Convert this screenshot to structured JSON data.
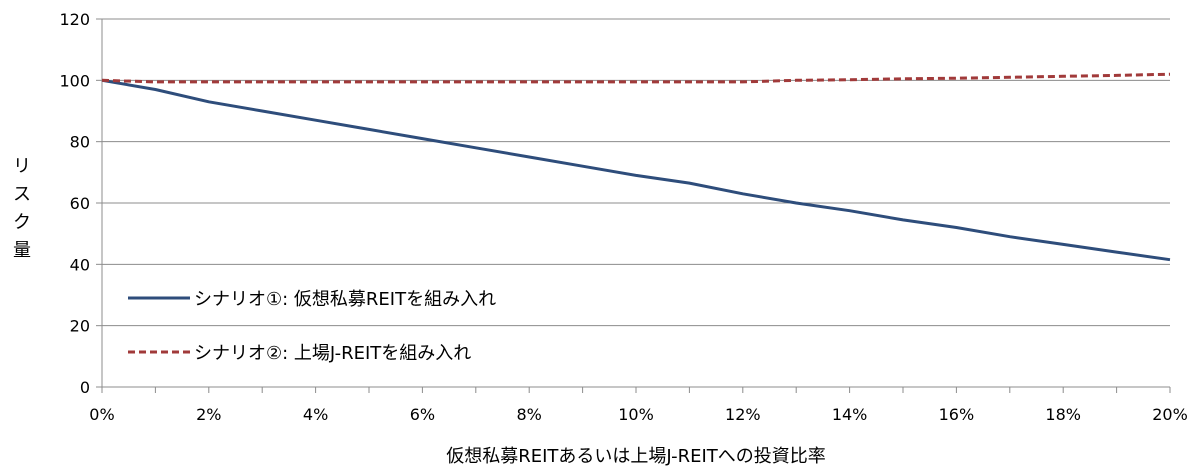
{
  "chart_data": {
    "type": "line",
    "title": "",
    "xlabel": "仮想私募REITあるいは上場J-REITへの投資比率",
    "ylabel": "リスク量",
    "xlim": [
      0,
      20
    ],
    "ylim": [
      0,
      120
    ],
    "x_ticks": [
      0,
      2,
      4,
      6,
      8,
      10,
      12,
      14,
      16,
      18,
      20
    ],
    "x_tick_labels": [
      "0%",
      "2%",
      "4%",
      "6%",
      "8%",
      "10%",
      "12%",
      "14%",
      "16%",
      "18%",
      "20%"
    ],
    "y_ticks": [
      0,
      20,
      40,
      60,
      80,
      100,
      120
    ],
    "y_tick_labels": [
      "0",
      "20",
      "40",
      "60",
      "80",
      "100",
      "120"
    ],
    "grid": "horizontal",
    "legend_position": "lower-left",
    "x": [
      0,
      1,
      2,
      3,
      4,
      5,
      6,
      7,
      8,
      9,
      10,
      11,
      12,
      13,
      14,
      15,
      16,
      17,
      18,
      19,
      20
    ],
    "series": [
      {
        "name": "シナリオ①: 仮想私募REITを組み入れ",
        "color": "#2e4d7b",
        "style": "solid",
        "values": [
          100,
          97,
          93,
          90,
          87,
          84,
          81,
          78,
          75,
          72,
          69,
          66.5,
          63,
          60,
          57.5,
          54.5,
          52,
          49,
          46.5,
          44,
          41.5
        ]
      },
      {
        "name": "シナリオ②: 上場J-REITを組み入れ",
        "color": "#a13a3a",
        "style": "dashed",
        "values": [
          100,
          99.5,
          99.5,
          99.5,
          99.5,
          99.5,
          99.5,
          99.5,
          99.5,
          99.5,
          99.5,
          99.5,
          99.5,
          100,
          100.2,
          100.5,
          100.7,
          101,
          101.3,
          101.6,
          102
        ]
      }
    ]
  }
}
